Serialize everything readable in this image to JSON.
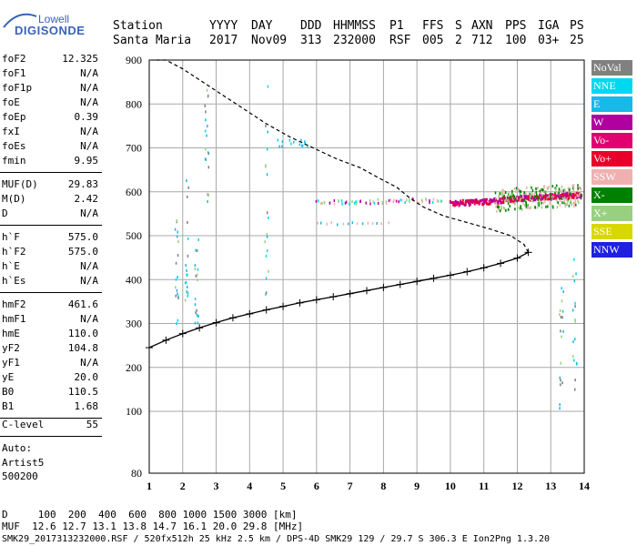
{
  "logo": {
    "line1": "Lowell",
    "line2": "DIGISONDE"
  },
  "header": {
    "labels": [
      "Station",
      "YYYY",
      "DAY",
      "DDD",
      "HHMMSS",
      "P1",
      "FFS",
      "S",
      "AXN",
      "PPS",
      "IGA",
      "PS"
    ],
    "values": [
      "Santa Maria",
      "2017",
      "Nov09",
      "313",
      "232000",
      "RSF",
      "005",
      "2",
      "712",
      "100",
      "03+",
      "25"
    ]
  },
  "params": [
    {
      "label": "foF2",
      "value": "12.325"
    },
    {
      "label": "foF1",
      "value": "N/A"
    },
    {
      "label": "foF1p",
      "value": "N/A"
    },
    {
      "label": "foE",
      "value": "N/A"
    },
    {
      "label": "foEp",
      "value": "0.39"
    },
    {
      "label": "fxI",
      "value": "N/A"
    },
    {
      "label": "foEs",
      "value": "N/A"
    },
    {
      "label": "fmin",
      "value": "9.95"
    },
    {
      "label": "MUF(D)",
      "value": "29.83"
    },
    {
      "label": "M(D)",
      "value": "2.42"
    },
    {
      "label": "D",
      "value": "N/A"
    },
    {
      "label": "h`F",
      "value": "575.0"
    },
    {
      "label": "h`F2",
      "value": "575.0"
    },
    {
      "label": "h`E",
      "value": "N/A"
    },
    {
      "label": "h`Es",
      "value": "N/A"
    },
    {
      "label": "hmF2",
      "value": "461.6"
    },
    {
      "label": "hmF1",
      "value": "N/A"
    },
    {
      "label": "hmE",
      "value": "110.0"
    },
    {
      "label": "yF2",
      "value": "104.8"
    },
    {
      "label": "yF1",
      "value": "N/A"
    },
    {
      "label": "yE",
      "value": "20.0"
    },
    {
      "label": "B0",
      "value": "110.5"
    },
    {
      "label": "B1",
      "value": "1.68"
    },
    {
      "label": "C-level",
      "value": "55"
    }
  ],
  "auto": {
    "line1": "Auto:",
    "line2": "Artist5",
    "line3": "500200"
  },
  "legend": [
    {
      "label": "NoVal",
      "color": "#808080"
    },
    {
      "label": "NNE",
      "color": "#00d8f0"
    },
    {
      "label": "E",
      "color": "#18b8e8"
    },
    {
      "label": "W",
      "color": "#b000a0"
    },
    {
      "label": "Vo-",
      "color": "#e00070"
    },
    {
      "label": "Vo+",
      "color": "#e8002a"
    },
    {
      "label": "SSW",
      "color": "#f0b0b0"
    },
    {
      "label": "X-",
      "color": "#008000"
    },
    {
      "label": "X+",
      "color": "#98d080"
    },
    {
      "label": "SSE",
      "color": "#d8d800"
    },
    {
      "label": "NNW",
      "color": "#2020e0"
    }
  ],
  "footer": {
    "distance_line": "D     100  200  400  600  800 1000 1500 3000 [km]",
    "muf_line": "MUF  12.6 12.7 13.1 13.8 14.7 16.1 20.0 29.8 [MHz]",
    "file_line": "SMK29_2017313232000.RSF / 520fx512h 25 kHz 2.5 km / DPS-4D SMK29 129 / 29.7 S 306.3 E Ion2Png 1.3.20"
  },
  "chart_data": {
    "type": "scatter",
    "x_ticks": [
      "1",
      "2",
      "3",
      "4",
      "5",
      "6",
      "7",
      "8",
      "9",
      "10",
      "11",
      "12",
      "13",
      "14"
    ],
    "y_ticks": [
      "80",
      "100",
      "200",
      "300",
      "400",
      "500",
      "600",
      "700",
      "800",
      "900"
    ],
    "xlim": [
      1,
      14
    ],
    "ylim": [
      80,
      900
    ],
    "xlabel": "",
    "ylabel": "",
    "grid": true,
    "profile_solid": {
      "x": [
        1.0,
        1.5,
        2.0,
        2.5,
        3.0,
        3.5,
        4.0,
        4.5,
        5.0,
        5.5,
        6.0,
        6.5,
        7.0,
        7.5,
        8.0,
        8.5,
        9.0,
        9.5,
        10.0,
        10.5,
        11.0,
        11.5,
        12.0,
        12.33
      ],
      "y": [
        245,
        262,
        277,
        290,
        302,
        313,
        322,
        331,
        339,
        347,
        354,
        361,
        368,
        375,
        382,
        389,
        396,
        403,
        410,
        418,
        427,
        437,
        449,
        462
      ]
    },
    "profile_dashed": {
      "x": [
        12.33,
        12.2,
        11.8,
        11.2,
        10.5,
        9.8,
        9.2,
        8.8,
        8.4,
        7.9,
        7.3,
        6.6,
        5.9,
        5.2,
        4.5,
        3.8,
        3.1,
        2.5,
        2.0,
        1.5,
        1.1
      ],
      "y": [
        462,
        480,
        500,
        515,
        530,
        545,
        565,
        585,
        610,
        630,
        655,
        675,
        700,
        725,
        755,
        790,
        825,
        855,
        880,
        900,
        900
      ]
    },
    "f_trace": {
      "x": [
        10.0,
        10.5,
        11.0,
        11.5,
        12.0,
        12.5,
        13.0,
        13.5,
        13.9
      ],
      "y": [
        576,
        578,
        580,
        583,
        587,
        590,
        592,
        594,
        595
      ]
    }
  }
}
